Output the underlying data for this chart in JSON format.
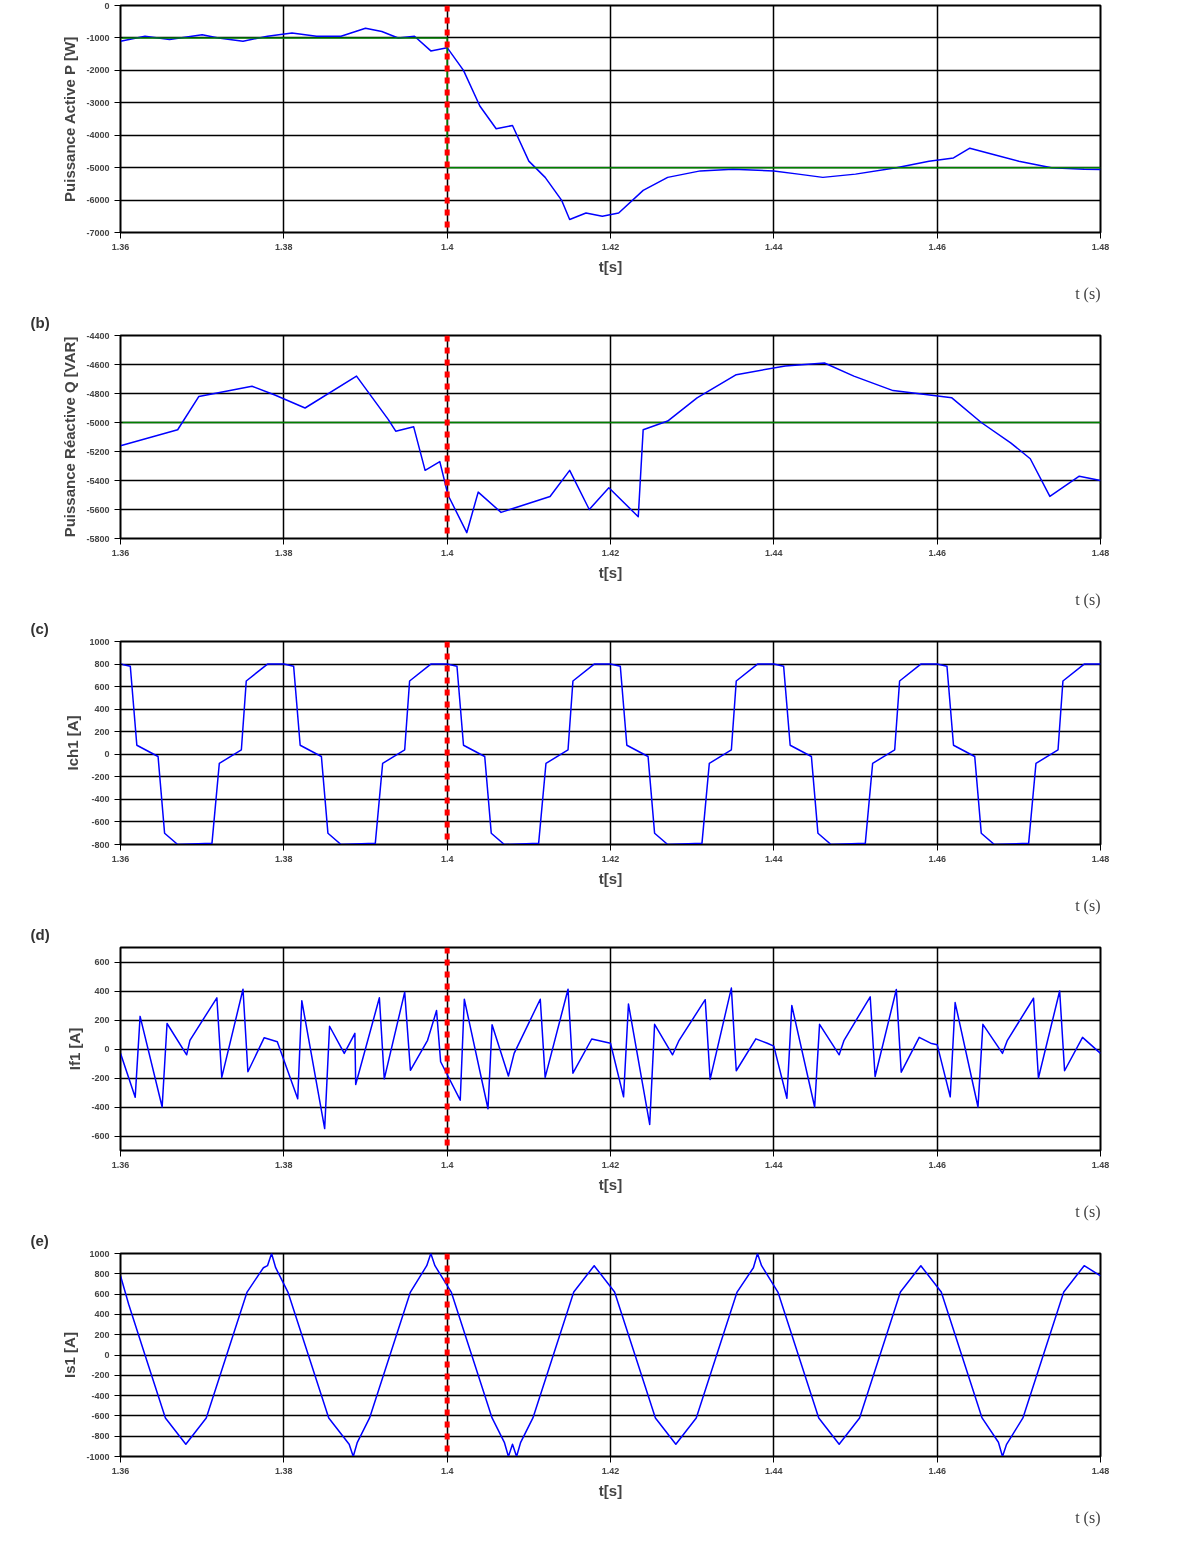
{
  "chart_data": [
    {
      "type": "line",
      "ylabel": "Puissance Active P [W]",
      "xlabel": "t[s]",
      "annotations": [
        "t (s)"
      ],
      "xlim": [
        1.36,
        1.48
      ],
      "xticks": [
        1.36,
        1.38,
        1.4,
        1.42,
        1.44,
        1.46,
        1.48
      ],
      "ylim": [
        -7000,
        0
      ],
      "yticks": [
        0,
        -1000,
        -2000,
        -3000,
        -4000,
        -5000,
        -6000,
        -7000
      ],
      "grid": true,
      "ref_lines": [
        {
          "axis": "x",
          "value": 1.4,
          "color": "#ff0000",
          "line_style": "dashed"
        }
      ],
      "series": [
        {
          "color": "#0000ff",
          "x": [
            1.36,
            1.363,
            1.366,
            1.37,
            1.372,
            1.375,
            1.378,
            1.381,
            1.384,
            1.387,
            1.39,
            1.392,
            1.394,
            1.396,
            1.398,
            1.4,
            1.402,
            1.404,
            1.406,
            1.408,
            1.41,
            1.412,
            1.414,
            1.415,
            1.417,
            1.419,
            1.421,
            1.424,
            1.427,
            1.431,
            1.435,
            1.44,
            1.443,
            1.446,
            1.45,
            1.455,
            1.459,
            1.462,
            1.464,
            1.467,
            1.47,
            1.474,
            1.478,
            1.48
          ],
          "values": [
            -1100,
            -950,
            -1050,
            -900,
            -1000,
            -1100,
            -950,
            -850,
            -950,
            -950,
            -700,
            -800,
            -1000,
            -950,
            -1400,
            -1300,
            -2000,
            -3100,
            -3800,
            -3700,
            -4800,
            -5300,
            -6000,
            -6600,
            -6400,
            -6500,
            -6400,
            -5700,
            -5300,
            -5100,
            -5050,
            -5100,
            -5200,
            -5300,
            -5200,
            -5000,
            -4800,
            -4700,
            -4400,
            -4600,
            -4800,
            -5000,
            -5050,
            -5060
          ]
        },
        {
          "color": "#008000",
          "x": [
            1.36,
            1.4,
            1.4,
            1.48
          ],
          "values": [
            -1000,
            -1000,
            -5000,
            -5000
          ]
        }
      ]
    },
    {
      "type": "line",
      "title": "(b)",
      "ylabel": "Puissance Réactive Q [VAR]",
      "xlabel": "t[s]",
      "annotations": [
        "t (s)"
      ],
      "xlim": [
        1.36,
        1.48
      ],
      "xticks": [
        1.36,
        1.38,
        1.4,
        1.42,
        1.44,
        1.46,
        1.48
      ],
      "ylim": [
        -5800,
        -4400
      ],
      "yticks": [
        -4400,
        -4600,
        -4800,
        -5000,
        -5200,
        -5400,
        -5600,
        -5800
      ],
      "grid": true,
      "ref_lines": [
        {
          "axis": "x",
          "value": 1.4,
          "color": "#ff0000",
          "line_style": "dashed"
        },
        {
          "axis": "y",
          "value": -5000,
          "color": "#008000",
          "line_style": "solid"
        }
      ],
      "series": [
        {
          "color": "#0000ff",
          "x": [
            1.36,
            1.367,
            1.3696,
            1.3761,
            1.3789,
            1.3826,
            1.3889,
            1.3928,
            1.3937,
            1.3959,
            1.3973,
            1.3991,
            1.4001,
            1.4024,
            1.4038,
            1.4066,
            1.4126,
            1.415,
            1.4174,
            1.4198,
            1.4234,
            1.424,
            1.427,
            1.4306,
            1.4354,
            1.4414,
            1.4462,
            1.4498,
            1.4546,
            1.4618,
            1.4654,
            1.469,
            1.4714,
            1.4738,
            1.4774,
            1.48
          ],
          "values": [
            -5160,
            -5050,
            -4820,
            -4750,
            -4810,
            -4900,
            -4680,
            -4980,
            -5060,
            -5030,
            -5330,
            -5270,
            -5500,
            -5760,
            -5480,
            -5620,
            -5510,
            -5330,
            -5600,
            -5450,
            -5650,
            -5050,
            -4990,
            -4830,
            -4670,
            -4610,
            -4590,
            -4680,
            -4780,
            -4830,
            -5000,
            -5140,
            -5250,
            -5510,
            -5370,
            -5400
          ]
        }
      ]
    },
    {
      "type": "line",
      "title": "(c)",
      "ylabel": "Ich1 [A]",
      "xlabel": "t[s]",
      "annotations": [
        "t (s)"
      ],
      "xlim": [
        1.36,
        1.48
      ],
      "xticks": [
        1.36,
        1.38,
        1.4,
        1.42,
        1.44,
        1.46,
        1.48
      ],
      "ylim": [
        -800,
        1000
      ],
      "yticks": [
        1000,
        800,
        600,
        400,
        200,
        0,
        -200,
        -400,
        -600,
        -800
      ],
      "grid": true,
      "ref_lines": [
        {
          "axis": "x",
          "value": 1.4,
          "color": "#ff0000",
          "line_style": "dashed"
        }
      ],
      "series": [
        {
          "color": "#0000ff",
          "x": [
            1.36,
            1.3612,
            1.362,
            1.3646,
            1.3654,
            1.367,
            1.3712,
            1.3721,
            1.3748,
            1.3754,
            1.378,
            1.38,
            1.3812,
            1.382,
            1.3846,
            1.3854,
            1.387,
            1.3912,
            1.3921,
            1.3948,
            1.3954,
            1.398,
            1.4,
            1.4012,
            1.402,
            1.4046,
            1.4054,
            1.407,
            1.4112,
            1.4121,
            1.4148,
            1.4154,
            1.418,
            1.42,
            1.4212,
            1.422,
            1.4246,
            1.4254,
            1.427,
            1.4312,
            1.4321,
            1.4348,
            1.4354,
            1.438,
            1.44,
            1.4412,
            1.442,
            1.4446,
            1.4454,
            1.447,
            1.4512,
            1.4521,
            1.4548,
            1.4554,
            1.458,
            1.46,
            1.4612,
            1.462,
            1.4646,
            1.4654,
            1.467,
            1.4712,
            1.4721,
            1.4748,
            1.4754,
            1.478,
            1.48
          ],
          "values": [
            800,
            780,
            80,
            -20,
            -700,
            -800,
            -790,
            -80,
            40,
            650,
            800,
            800,
            780,
            80,
            -20,
            -700,
            -800,
            -790,
            -80,
            40,
            650,
            800,
            800,
            780,
            80,
            -20,
            -700,
            -800,
            -790,
            -80,
            40,
            650,
            800,
            800,
            780,
            80,
            -20,
            -700,
            -800,
            -790,
            -80,
            40,
            650,
            800,
            800,
            780,
            80,
            -20,
            -700,
            -800,
            -790,
            -80,
            40,
            650,
            800,
            800,
            780,
            80,
            -20,
            -700,
            -800,
            -790,
            -80,
            40,
            650,
            800,
            800
          ]
        }
      ]
    },
    {
      "type": "line",
      "title": "(d)",
      "ylabel": "If1 [A]",
      "xlabel": "t[s]",
      "annotations": [
        "t (s)"
      ],
      "xlim": [
        1.36,
        1.48
      ],
      "xticks": [
        1.36,
        1.38,
        1.4,
        1.42,
        1.44,
        1.46,
        1.48
      ],
      "ylim": [
        -700,
        700
      ],
      "yticks": [
        600,
        400,
        200,
        0,
        -200,
        -400,
        -600
      ],
      "grid": true,
      "ref_lines": [
        {
          "axis": "x",
          "value": 1.4,
          "color": "#ff0000",
          "line_style": "dashed"
        }
      ],
      "series": [
        {
          "color": "#0000ff",
          "x": [
            1.36,
            1.3618,
            1.3624,
            1.3651,
            1.3657,
            1.3681,
            1.3685,
            1.3718,
            1.3724,
            1.375,
            1.3756,
            1.3776,
            1.3792,
            1.3817,
            1.3822,
            1.385,
            1.3856,
            1.3874,
            1.3887,
            1.3888,
            1.3917,
            1.3923,
            1.3948,
            1.3955,
            1.3976,
            1.3987,
            1.3992,
            1.4016,
            1.4021,
            1.405,
            1.4055,
            1.4075,
            1.4082,
            1.4114,
            1.412,
            1.4148,
            1.4154,
            1.4177,
            1.42,
            1.4216,
            1.4222,
            1.4248,
            1.4254,
            1.4276,
            1.4284,
            1.4316,
            1.4322,
            1.4348,
            1.4354,
            1.4378,
            1.4392,
            1.44,
            1.4416,
            1.4422,
            1.445,
            1.4456,
            1.448,
            1.4486,
            1.4518,
            1.4524,
            1.455,
            1.4556,
            1.4578,
            1.4592,
            1.46,
            1.4616,
            1.4622,
            1.465,
            1.4656,
            1.468,
            1.4686,
            1.4718,
            1.4724,
            1.475,
            1.4756,
            1.4778,
            1.48
          ],
          "values": [
            -30,
            -333,
            225,
            -400,
            176,
            -40,
            60,
            353,
            -196,
            412,
            -157,
            78,
            50,
            -343,
            333,
            -549,
            157,
            -30,
            108,
            -245,
            353,
            -206,
            392,
            -147,
            60,
            265,
            -88,
            -353,
            343,
            -412,
            167,
            -186,
            -30,
            343,
            -196,
            412,
            -167,
            69,
            40,
            -330,
            310,
            -520,
            170,
            -40,
            60,
            340,
            -210,
            420,
            -150,
            70,
            40,
            20,
            -340,
            300,
            -400,
            170,
            -40,
            60,
            360,
            -190,
            410,
            -160,
            80,
            40,
            30,
            -330,
            320,
            -400,
            170,
            -30,
            60,
            350,
            -200,
            400,
            -150,
            80,
            -30
          ]
        }
      ]
    },
    {
      "type": "line",
      "title": "(e)",
      "ylabel": "Is1 [A]",
      "xlabel": "t[s]",
      "annotations": [
        "t (s)"
      ],
      "xlim": [
        1.36,
        1.48
      ],
      "xticks": [
        1.36,
        1.38,
        1.4,
        1.42,
        1.44,
        1.46,
        1.48
      ],
      "ylim": [
        -1000,
        1000
      ],
      "yticks": [
        1000,
        800,
        600,
        400,
        200,
        0,
        -200,
        -400,
        -600,
        -800,
        -1000
      ],
      "grid": true,
      "ref_lines": [
        {
          "axis": "x",
          "value": 1.4,
          "color": "#ff0000",
          "line_style": "dashed"
        }
      ],
      "series": [
        {
          "color": "#0000ff",
          "x": [
            1.36,
            1.361,
            1.363,
            1.3655,
            1.368,
            1.3705,
            1.373,
            1.3755,
            1.3775,
            1.378,
            1.3785,
            1.379,
            1.3805,
            1.383,
            1.3855,
            1.388,
            1.3885,
            1.389,
            1.3905,
            1.393,
            1.3955,
            1.3975,
            1.398,
            1.3985,
            1.4005,
            1.403,
            1.4055,
            1.407,
            1.4075,
            1.408,
            1.4085,
            1.409,
            1.4105,
            1.413,
            1.4155,
            1.418,
            1.4205,
            1.423,
            1.4255,
            1.428,
            1.4305,
            1.433,
            1.4355,
            1.4375,
            1.438,
            1.4385,
            1.4405,
            1.443,
            1.4455,
            1.448,
            1.4505,
            1.453,
            1.4555,
            1.458,
            1.4605,
            1.463,
            1.4655,
            1.4675,
            1.468,
            1.4685,
            1.4705,
            1.473,
            1.4755,
            1.478,
            1.48
          ],
          "values": [
            780,
            500,
            0,
            -620,
            -880,
            -620,
            0,
            620,
            860,
            880,
            1000,
            860,
            620,
            0,
            -620,
            -880,
            -1000,
            -860,
            -620,
            0,
            620,
            880,
            1000,
            880,
            620,
            0,
            -620,
            -860,
            -1000,
            -880,
            -1000,
            -860,
            -620,
            0,
            620,
            880,
            620,
            0,
            -620,
            -880,
            -620,
            0,
            620,
            860,
            1000,
            880,
            620,
            0,
            -620,
            -880,
            -620,
            0,
            620,
            880,
            620,
            0,
            -620,
            -860,
            -1000,
            -880,
            -620,
            0,
            620,
            880,
            780
          ]
        }
      ]
    }
  ]
}
